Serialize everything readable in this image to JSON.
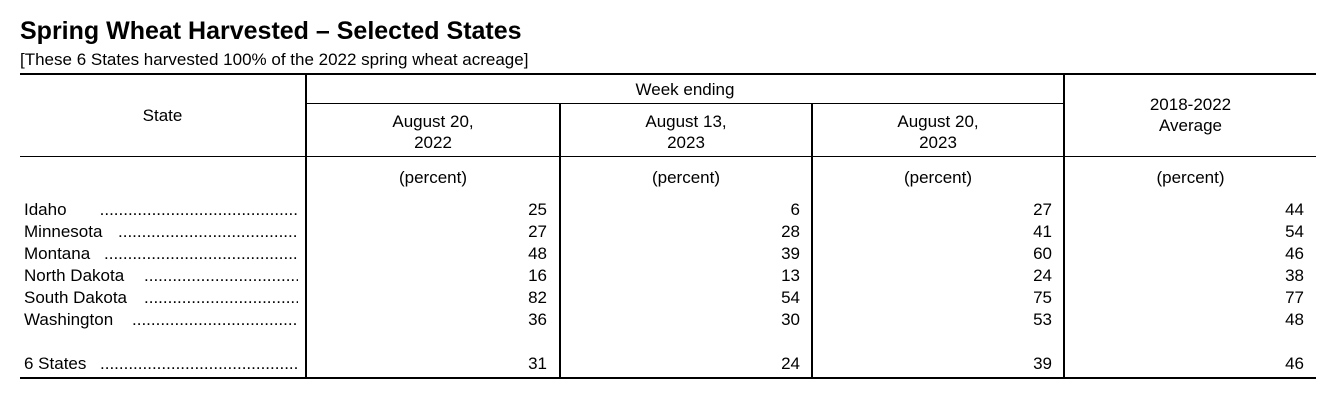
{
  "title": "Spring Wheat Harvested – Selected States",
  "subtitle": "[These 6 States harvested 100% of the 2022 spring wheat acreage]",
  "table": {
    "state_header": "State",
    "week_ending_header": "Week ending",
    "columns": [
      {
        "header": "August 20,\n2022",
        "unit": "(percent)"
      },
      {
        "header": "August 13,\n2023",
        "unit": "(percent)"
      },
      {
        "header": "August 20,\n2023",
        "unit": "(percent)"
      },
      {
        "header": "2018-2022\nAverage",
        "unit": "(percent)"
      }
    ],
    "rows": [
      {
        "state": "Idaho",
        "values": [
          "25",
          "6",
          "27",
          "44"
        ]
      },
      {
        "state": "Minnesota",
        "values": [
          "27",
          "28",
          "41",
          "54"
        ]
      },
      {
        "state": "Montana",
        "values": [
          "48",
          "39",
          "60",
          "46"
        ]
      },
      {
        "state": "North Dakota",
        "values": [
          "16",
          "13",
          "24",
          "38"
        ]
      },
      {
        "state": "South Dakota",
        "values": [
          "82",
          "54",
          "75",
          "77"
        ]
      },
      {
        "state": "Washington",
        "values": [
          "36",
          "30",
          "53",
          "48"
        ]
      }
    ],
    "total": {
      "state": "6 States",
      "values": [
        "31",
        "24",
        "39",
        "46"
      ]
    }
  }
}
